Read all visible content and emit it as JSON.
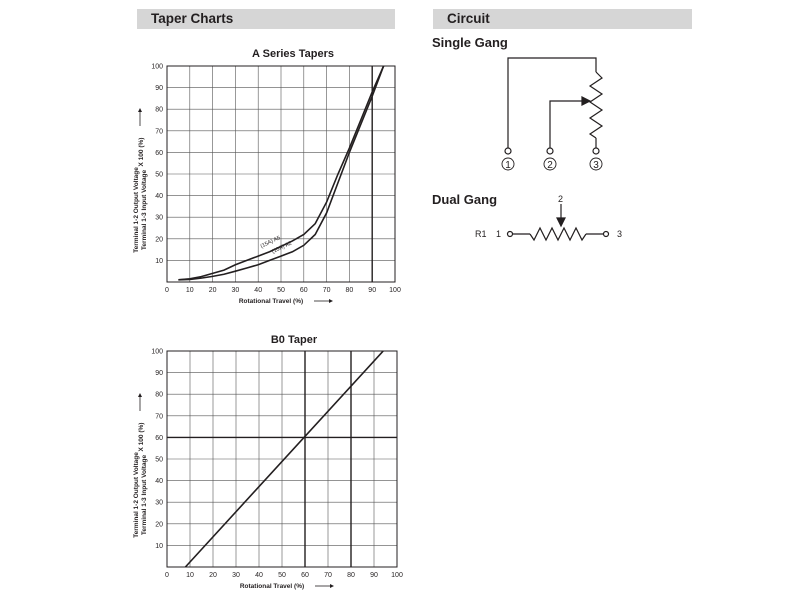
{
  "sections": {
    "taper_charts": "Taper Charts",
    "circuit": "Circuit"
  },
  "circuit": {
    "single_gang": {
      "title": "Single Gang",
      "terminals": [
        "1",
        "2",
        "3"
      ]
    },
    "dual_gang": {
      "title": "Dual Gang",
      "label": "R1",
      "terminal_left": "1",
      "terminal_wiper": "2",
      "terminal_right": "3"
    }
  },
  "chart_data": [
    {
      "type": "line",
      "title": "A Series Tapers",
      "xlabel": "Rotational Travel (%)",
      "ylabel_line1": "Terminal 1-2 Output Voltage",
      "ylabel_line2": "Terminal 1-3 Input Voltage",
      "ylabel_suffix": "X 100 (%)",
      "xlim": [
        0,
        100
      ],
      "ylim": [
        0,
        100
      ],
      "xticks": [
        0,
        10,
        20,
        30,
        40,
        50,
        60,
        70,
        80,
        90,
        100
      ],
      "yticks": [
        10,
        20,
        30,
        40,
        50,
        60,
        70,
        80,
        90,
        100
      ],
      "grid": true,
      "reference_lines": {
        "x": [
          90
        ]
      },
      "series": [
        {
          "name": "(15A)  A5",
          "x": [
            5,
            10,
            15,
            20,
            25,
            30,
            35,
            40,
            45,
            50,
            55,
            60,
            65,
            70,
            75,
            80,
            85,
            90,
            95
          ],
          "y": [
            1,
            1.5,
            2.5,
            4,
            5.5,
            8,
            10,
            12,
            14,
            16.5,
            19,
            22,
            27,
            37,
            50,
            62,
            75,
            88,
            100
          ]
        },
        {
          "name": "(10A)  A2",
          "x": [
            5,
            10,
            15,
            20,
            25,
            30,
            35,
            40,
            45,
            50,
            55,
            60,
            65,
            70,
            75,
            80,
            85,
            90,
            95
          ],
          "y": [
            1,
            1.2,
            1.8,
            2.6,
            3.6,
            5,
            6.5,
            8,
            10,
            12,
            14,
            17,
            22,
            32,
            46,
            60,
            73,
            86,
            100
          ]
        }
      ]
    },
    {
      "type": "line",
      "title": "B0 Taper",
      "xlabel": "Rotational Travel (%)",
      "ylabel_line1": "Terminal 1-2 Output Voltage",
      "ylabel_line2": "Terminal 1-3 Input Voltage",
      "ylabel_suffix": "X 100 (%)",
      "xlim": [
        0,
        100
      ],
      "ylim": [
        0,
        100
      ],
      "xticks": [
        0,
        10,
        20,
        30,
        40,
        50,
        60,
        70,
        80,
        90,
        100
      ],
      "yticks": [
        10,
        20,
        30,
        40,
        50,
        60,
        70,
        80,
        90,
        100
      ],
      "grid": true,
      "reference_lines": {
        "x": [
          60,
          80
        ],
        "y": [
          60
        ]
      },
      "series": [
        {
          "name": "",
          "x": [
            8,
            94
          ],
          "y": [
            0,
            100
          ]
        }
      ]
    }
  ]
}
